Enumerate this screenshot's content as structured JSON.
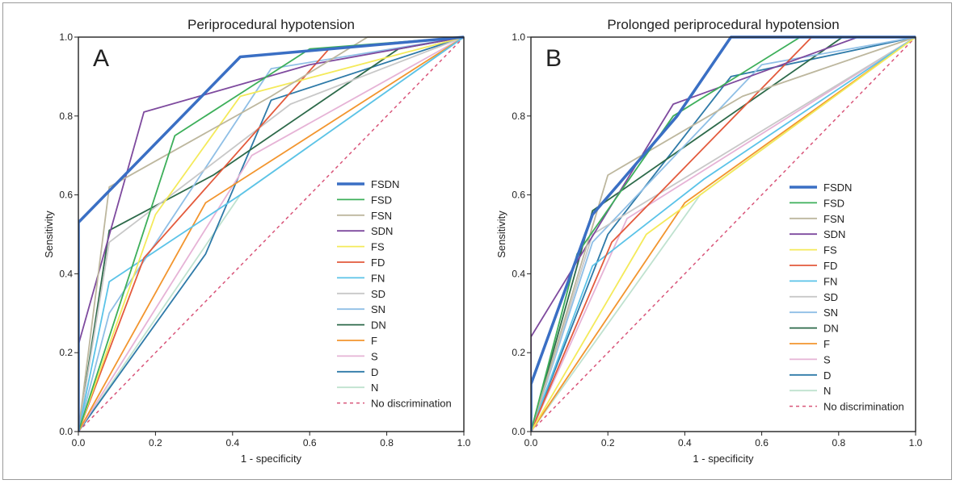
{
  "chart_data": [
    {
      "type": "line",
      "panel_label": "A",
      "title": "Periprocedural hypotension",
      "xlabel": "1 - specificity",
      "ylabel": "Sensitivity",
      "xlim": [
        0,
        1
      ],
      "ylim": [
        0,
        1
      ],
      "xticks": [
        "0.0",
        "0.2",
        "0.4",
        "0.6",
        "0.8",
        "1.0"
      ],
      "yticks": [
        "0.0",
        "0.2",
        "0.4",
        "0.6",
        "0.8",
        "1.0"
      ],
      "legend_position": "lower-right",
      "series": [
        {
          "name": "FSDN",
          "color": "#3a6fc4",
          "width": 3.5,
          "x": [
            0,
            0,
            0.42,
            1
          ],
          "y": [
            0,
            0.53,
            0.95,
            1
          ]
        },
        {
          "name": "FSD",
          "color": "#3daf5a",
          "width": 1.8,
          "x": [
            0,
            0.25,
            0.6,
            1
          ],
          "y": [
            0,
            0.75,
            0.97,
            1
          ]
        },
        {
          "name": "FSN",
          "color": "#bdb79e",
          "width": 1.8,
          "x": [
            0,
            0.08,
            0.5,
            0.75,
            1
          ],
          "y": [
            0,
            0.62,
            0.85,
            1,
            1
          ]
        },
        {
          "name": "SDN",
          "color": "#7e4a9e",
          "width": 1.8,
          "x": [
            0,
            0,
            0.17,
            0.6,
            1
          ],
          "y": [
            0,
            0.22,
            0.81,
            0.93,
            1
          ]
        },
        {
          "name": "FS",
          "color": "#f4ea5a",
          "width": 1.8,
          "x": [
            0,
            0.2,
            0.42,
            1
          ],
          "y": [
            0,
            0.55,
            0.85,
            1
          ]
        },
        {
          "name": "FD",
          "color": "#e35a3c",
          "width": 1.8,
          "x": [
            0,
            0.17,
            0.65,
            1
          ],
          "y": [
            0,
            0.44,
            0.97,
            1
          ]
        },
        {
          "name": "FN",
          "color": "#5bc3e8",
          "width": 1.8,
          "x": [
            0,
            0.08,
            0.42,
            1
          ],
          "y": [
            0,
            0.38,
            0.6,
            1
          ]
        },
        {
          "name": "SD",
          "color": "#c8c8c8",
          "width": 1.8,
          "x": [
            0,
            0.08,
            0.55,
            1
          ],
          "y": [
            0,
            0.48,
            0.83,
            1
          ]
        },
        {
          "name": "SN",
          "color": "#8fbfe6",
          "width": 1.8,
          "x": [
            0,
            0.08,
            0.5,
            1
          ],
          "y": [
            0,
            0.3,
            0.92,
            1
          ]
        },
        {
          "name": "DN",
          "color": "#2d6a4a",
          "width": 1.8,
          "x": [
            0,
            0.08,
            0.35,
            0.83,
            1
          ],
          "y": [
            0,
            0.51,
            0.65,
            0.97,
            1
          ]
        },
        {
          "name": "F",
          "color": "#f2952e",
          "width": 1.8,
          "x": [
            0,
            0.33,
            1
          ],
          "y": [
            0,
            0.58,
            1
          ]
        },
        {
          "name": "S",
          "color": "#e6b3d6",
          "width": 1.8,
          "x": [
            0,
            0.45,
            1
          ],
          "y": [
            0,
            0.7,
            1
          ]
        },
        {
          "name": "D",
          "color": "#2e7aa8",
          "width": 1.8,
          "x": [
            0,
            0.33,
            0.5,
            1
          ],
          "y": [
            0,
            0.45,
            0.84,
            1
          ]
        },
        {
          "name": "N",
          "color": "#bfe2cf",
          "width": 1.8,
          "x": [
            0,
            0.42,
            1
          ],
          "y": [
            0,
            0.6,
            1
          ]
        },
        {
          "name": "No discrimination",
          "color": "#d9557a",
          "width": 1.5,
          "dashed": true,
          "x": [
            0,
            1
          ],
          "y": [
            0,
            1
          ]
        }
      ]
    },
    {
      "type": "line",
      "panel_label": "B",
      "title": "Prolonged periprocedural hypotension",
      "xlabel": "1 - specificity",
      "ylabel": "Sensitivity",
      "xlim": [
        0,
        1
      ],
      "ylim": [
        0,
        1
      ],
      "xticks": [
        "0.0",
        "0.2",
        "0.4",
        "0.6",
        "0.8",
        "1.0"
      ],
      "yticks": [
        "0.0",
        "0.2",
        "0.4",
        "0.6",
        "0.8",
        "1.0"
      ],
      "legend_position": "lower-right",
      "series": [
        {
          "name": "FSDN",
          "color": "#3a6fc4",
          "width": 3.5,
          "x": [
            0,
            0,
            0.16,
            0.38,
            0.52,
            1
          ],
          "y": [
            0,
            0.12,
            0.55,
            0.8,
            1,
            1
          ]
        },
        {
          "name": "FSD",
          "color": "#3daf5a",
          "width": 1.8,
          "x": [
            0,
            0.12,
            0.37,
            0.7,
            1
          ],
          "y": [
            0,
            0.45,
            0.8,
            1,
            1
          ]
        },
        {
          "name": "FSN",
          "color": "#bdb79e",
          "width": 1.8,
          "x": [
            0,
            0.2,
            0.55,
            1
          ],
          "y": [
            0,
            0.65,
            0.85,
            1
          ]
        },
        {
          "name": "SDN",
          "color": "#7e4a9e",
          "width": 1.8,
          "x": [
            0,
            0,
            0.37,
            0.85,
            1
          ],
          "y": [
            0,
            0.24,
            0.83,
            1,
            1
          ]
        },
        {
          "name": "FS",
          "color": "#f4ea5a",
          "width": 1.8,
          "x": [
            0,
            0.3,
            1
          ],
          "y": [
            0,
            0.5,
            1
          ]
        },
        {
          "name": "FD",
          "color": "#e35a3c",
          "width": 1.8,
          "x": [
            0,
            0.21,
            0.73,
            1
          ],
          "y": [
            0,
            0.48,
            1,
            1
          ]
        },
        {
          "name": "FN",
          "color": "#5bc3e8",
          "width": 1.8,
          "x": [
            0,
            0.16,
            0.45,
            1
          ],
          "y": [
            0,
            0.42,
            0.64,
            1
          ]
        },
        {
          "name": "SD",
          "color": "#c8c8c8",
          "width": 1.8,
          "x": [
            0,
            0.16,
            1
          ],
          "y": [
            0,
            0.5,
            1
          ]
        },
        {
          "name": "SN",
          "color": "#8fbfe6",
          "width": 1.8,
          "x": [
            0,
            0.16,
            0.6,
            1
          ],
          "y": [
            0,
            0.48,
            0.93,
            1
          ]
        },
        {
          "name": "DN",
          "color": "#2d6a4a",
          "width": 1.8,
          "x": [
            0,
            0.16,
            0.81,
            1
          ],
          "y": [
            0,
            0.56,
            1,
            1
          ]
        },
        {
          "name": "F",
          "color": "#f2952e",
          "width": 1.8,
          "x": [
            0,
            0.4,
            1
          ],
          "y": [
            0,
            0.58,
            1
          ]
        },
        {
          "name": "S",
          "color": "#e6b3d6",
          "width": 1.8,
          "x": [
            0,
            0.25,
            1
          ],
          "y": [
            0,
            0.54,
            1
          ]
        },
        {
          "name": "D",
          "color": "#2e7aa8",
          "width": 1.8,
          "x": [
            0,
            0.2,
            0.52,
            1
          ],
          "y": [
            0,
            0.5,
            0.9,
            1
          ]
        },
        {
          "name": "N",
          "color": "#bfe2cf",
          "width": 1.8,
          "x": [
            0,
            0.44,
            1
          ],
          "y": [
            0,
            0.6,
            1
          ]
        },
        {
          "name": "No discrimination",
          "color": "#d9557a",
          "width": 1.5,
          "dashed": true,
          "x": [
            0,
            1
          ],
          "y": [
            0,
            1
          ]
        }
      ]
    }
  ]
}
